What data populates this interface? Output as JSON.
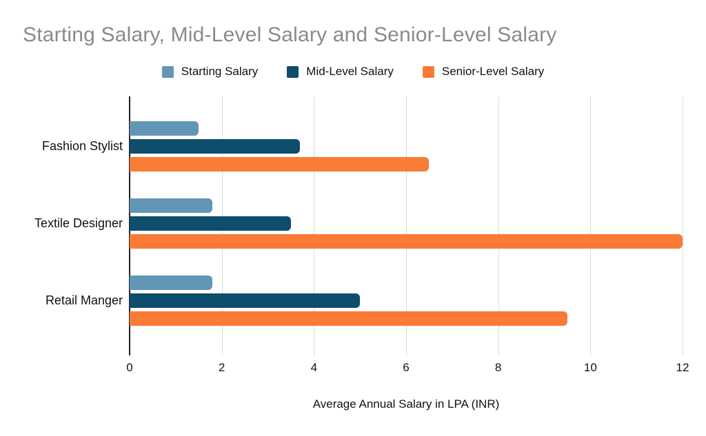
{
  "chart_data": {
    "type": "bar",
    "orientation": "horizontal",
    "title": "Starting Salary, Mid-Level Salary and Senior-Level Salary",
    "xlabel": "Average Annual Salary in LPA (INR)",
    "categories": [
      "Fashion Stylist",
      "Textile Designer",
      "Retail Manger"
    ],
    "series": [
      {
        "name": "Starting Salary",
        "color": "#6296b5",
        "values": [
          1.5,
          1.8,
          1.8
        ]
      },
      {
        "name": "Mid-Level Salary",
        "color": "#0e4d6c",
        "values": [
          3.7,
          3.5,
          5
        ]
      },
      {
        "name": "Senior-Level Salary",
        "color": "#f97b35",
        "values": [
          6.5,
          12,
          9.5
        ]
      }
    ],
    "x_ticks": [
      0,
      2,
      4,
      6,
      8,
      10,
      12
    ],
    "xlim": [
      0,
      12
    ],
    "grid": "vertical-only",
    "legend_position": "top"
  },
  "style": {
    "title_color": "#8a8a8a",
    "gridline_color": "#dadada",
    "axis_line_color": "#1f1f1f",
    "label_color": "#111111"
  }
}
